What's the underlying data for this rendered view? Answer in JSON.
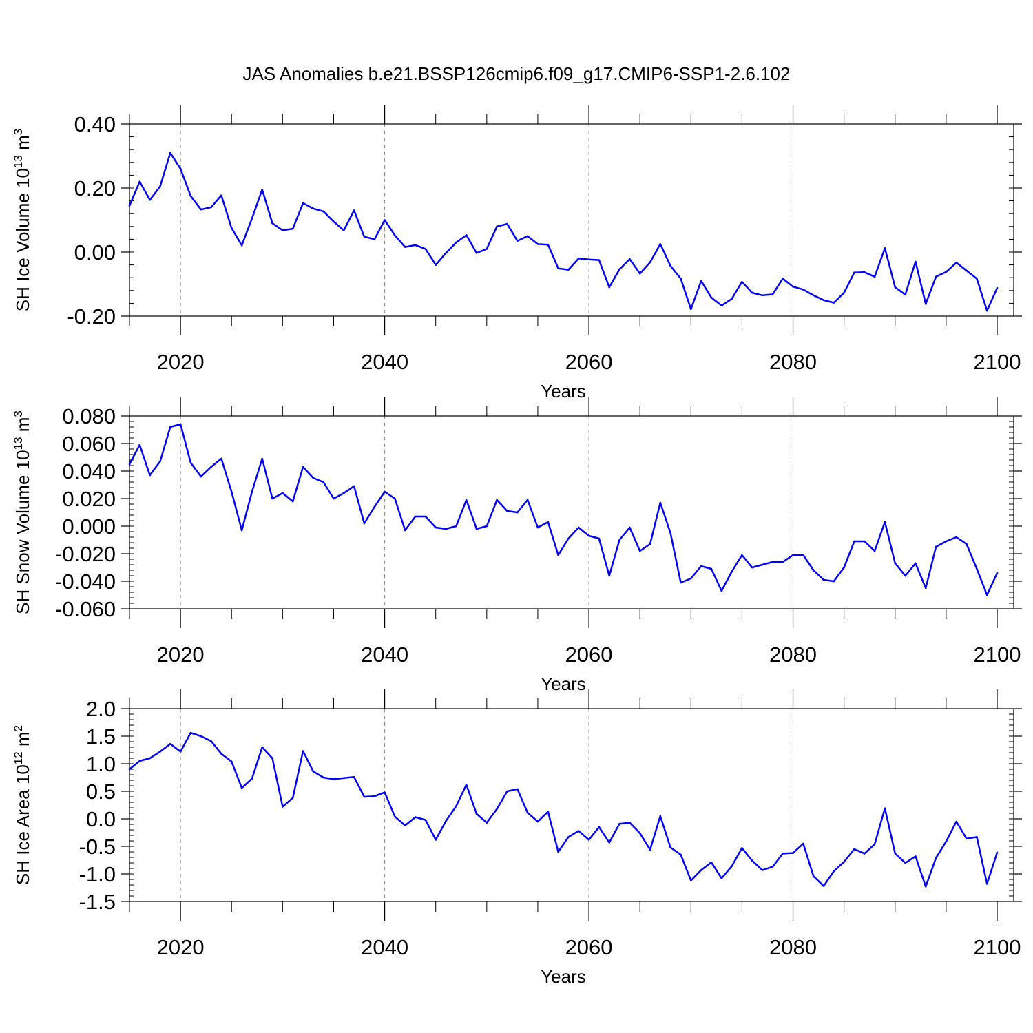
{
  "figure": {
    "title": "JAS Anomalies b.e21.BSSP126cmip6.f09_g17.CMIP6-SSP1-2.6.102"
  },
  "chart_data": [
    {
      "type": "line",
      "title": "JAS Anomalies b.e21.BSSP126cmip6.f09_g17.CMIP6-SSP1-2.6.102",
      "xlabel": "Years",
      "ylabel_base": "SH Ice Volume 10",
      "ylabel_exp": "13",
      "ylabel_unit": " m",
      "ylabel_unit_exp": "3",
      "xlim": [
        2015,
        2100
      ],
      "ylim": [
        -0.2,
        0.4
      ],
      "xticks": [
        2020,
        2040,
        2060,
        2080,
        2100
      ],
      "xtick_labels": [
        "2020",
        "2040",
        "2060",
        "2080",
        "2100"
      ],
      "yticks": [
        -0.2,
        0.0,
        0.2,
        0.4
      ],
      "ytick_labels": [
        "-0.20",
        "0.00",
        "0.20",
        "0.40"
      ],
      "y_minor_step": 0.04,
      "x_minor_step": 5,
      "vgrid": [
        2020,
        2040,
        2060,
        2080
      ],
      "color": "#0000ff",
      "x_start": 2015,
      "values": [
        0.145,
        0.22,
        0.163,
        0.205,
        0.31,
        0.26,
        0.175,
        0.133,
        0.14,
        0.177,
        0.075,
        0.021,
        0.105,
        0.195,
        0.09,
        0.068,
        0.073,
        0.153,
        0.136,
        0.127,
        0.095,
        0.068,
        0.13,
        0.048,
        0.04,
        0.1,
        0.052,
        0.016,
        0.022,
        0.01,
        -0.04,
        -0.003,
        0.03,
        0.053,
        -0.003,
        0.01,
        0.08,
        0.088,
        0.035,
        0.05,
        0.025,
        0.023,
        -0.051,
        -0.055,
        -0.02,
        -0.023,
        -0.025,
        -0.11,
        -0.054,
        -0.022,
        -0.067,
        -0.032,
        0.025,
        -0.043,
        -0.083,
        -0.178,
        -0.09,
        -0.142,
        -0.167,
        -0.146,
        -0.093,
        -0.127,
        -0.135,
        -0.132,
        -0.083,
        -0.108,
        -0.117,
        -0.135,
        -0.15,
        -0.158,
        -0.127,
        -0.064,
        -0.063,
        -0.077,
        0.012,
        -0.11,
        -0.133,
        -0.03,
        -0.162,
        -0.077,
        -0.062,
        -0.033,
        -0.058,
        -0.083,
        -0.183,
        -0.112
      ]
    },
    {
      "type": "line",
      "xlabel": "Years",
      "ylabel_base": "SH Snow Volume 10",
      "ylabel_exp": "13",
      "ylabel_unit": " m",
      "ylabel_unit_exp": "3",
      "xlim": [
        2015,
        2100
      ],
      "ylim": [
        -0.06,
        0.08
      ],
      "xticks": [
        2020,
        2040,
        2060,
        2080,
        2100
      ],
      "xtick_labels": [
        "2020",
        "2040",
        "2060",
        "2080",
        "2100"
      ],
      "yticks": [
        -0.06,
        -0.04,
        -0.02,
        0.0,
        0.02,
        0.04,
        0.06,
        0.08
      ],
      "ytick_labels": [
        "-0.060",
        "-0.040",
        "-0.020",
        "0.000",
        "0.020",
        "0.040",
        "0.060",
        "0.080"
      ],
      "y_minor_step": 0.004,
      "x_minor_step": 5,
      "vgrid": [
        2020,
        2040,
        2060,
        2080
      ],
      "color": "#0000ff",
      "x_start": 2015,
      "values": [
        0.045,
        0.059,
        0.037,
        0.047,
        0.072,
        0.074,
        0.046,
        0.036,
        0.043,
        0.049,
        0.025,
        -0.003,
        0.025,
        0.049,
        0.02,
        0.024,
        0.018,
        0.043,
        0.035,
        0.032,
        0.02,
        0.024,
        0.029,
        0.002,
        0.014,
        0.025,
        0.02,
        -0.003,
        0.007,
        0.007,
        -0.001,
        -0.002,
        0.0,
        0.019,
        -0.002,
        0.0,
        0.019,
        0.011,
        0.01,
        0.019,
        -0.001,
        0.003,
        -0.021,
        -0.009,
        -0.001,
        -0.007,
        -0.009,
        -0.036,
        -0.01,
        -0.001,
        -0.018,
        -0.013,
        0.017,
        -0.005,
        -0.041,
        -0.038,
        -0.029,
        -0.031,
        -0.047,
        -0.033,
        -0.021,
        -0.03,
        -0.028,
        -0.026,
        -0.026,
        -0.021,
        -0.021,
        -0.032,
        -0.039,
        -0.04,
        -0.03,
        -0.011,
        -0.011,
        -0.018,
        0.003,
        -0.027,
        -0.036,
        -0.027,
        -0.045,
        -0.015,
        -0.011,
        -0.008,
        -0.013,
        -0.031,
        -0.05,
        -0.034
      ]
    },
    {
      "type": "line",
      "xlabel": "Years",
      "ylabel_base": "SH Ice Area 10",
      "ylabel_exp": "12",
      "ylabel_unit": " m",
      "ylabel_unit_exp": "2",
      "xlim": [
        2015,
        2100
      ],
      "ylim": [
        -1.5,
        2.0
      ],
      "xticks": [
        2020,
        2040,
        2060,
        2080,
        2100
      ],
      "xtick_labels": [
        "2020",
        "2040",
        "2060",
        "2080",
        "2100"
      ],
      "yticks": [
        -1.5,
        -1.0,
        -0.5,
        0.0,
        0.5,
        1.0,
        1.5,
        2.0
      ],
      "ytick_labels": [
        "-1.5",
        "-1.0",
        "-0.5",
        "0.0",
        "0.5",
        "1.0",
        "1.5",
        "2.0"
      ],
      "y_minor_step": 0.1,
      "x_minor_step": 5,
      "vgrid": [
        2020,
        2040,
        2060,
        2080
      ],
      "color": "#0000ff",
      "x_start": 2015,
      "values": [
        0.9,
        1.05,
        1.1,
        1.22,
        1.36,
        1.22,
        1.56,
        1.5,
        1.41,
        1.18,
        1.04,
        0.56,
        0.73,
        1.3,
        1.1,
        0.22,
        0.38,
        1.23,
        0.86,
        0.75,
        0.72,
        0.74,
        0.76,
        0.4,
        0.41,
        0.48,
        0.04,
        -0.12,
        0.03,
        -0.02,
        -0.38,
        -0.04,
        0.23,
        0.62,
        0.09,
        -0.07,
        0.18,
        0.5,
        0.54,
        0.11,
        -0.05,
        0.13,
        -0.6,
        -0.33,
        -0.22,
        -0.38,
        -0.15,
        -0.43,
        -0.09,
        -0.07,
        -0.26,
        -0.56,
        0.05,
        -0.52,
        -0.65,
        -1.12,
        -0.93,
        -0.79,
        -1.08,
        -0.86,
        -0.53,
        -0.76,
        -0.93,
        -0.87,
        -0.63,
        -0.62,
        -0.45,
        -1.04,
        -1.22,
        -0.95,
        -0.78,
        -0.55,
        -0.63,
        -0.46,
        0.19,
        -0.63,
        -0.8,
        -0.68,
        -1.23,
        -0.71,
        -0.41,
        -0.05,
        -0.36,
        -0.33,
        -1.18,
        -0.61
      ]
    }
  ]
}
